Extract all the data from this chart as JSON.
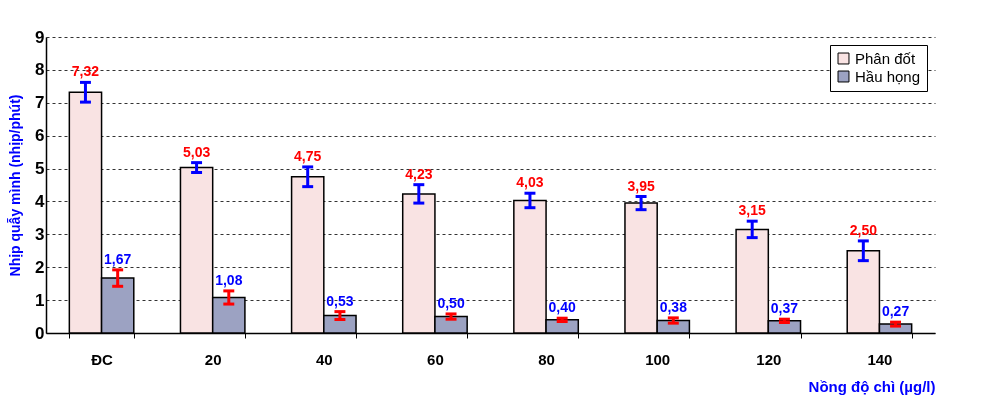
{
  "chart_data": {
    "type": "bar",
    "xlabel": "Nồng độ chì (µg/l)",
    "ylabel": "Nhịp quẫy mình (nhịp/phút)",
    "categories": [
      "ĐC",
      "20",
      "40",
      "60",
      "80",
      "100",
      "120",
      "140"
    ],
    "series": [
      {
        "name": "Phân đốt",
        "color": "#f9e3e3",
        "values": [
          7.32,
          5.03,
          4.75,
          4.23,
          4.03,
          3.95,
          3.15,
          2.5
        ],
        "errors": [
          0.3,
          0.15,
          0.3,
          0.28,
          0.22,
          0.2,
          0.25,
          0.3
        ],
        "value_labels": [
          "7,32",
          "5,03",
          "4,75",
          "4,23",
          "4,03",
          "3,95",
          "3,15",
          "2,50"
        ]
      },
      {
        "name": "Hầu họng",
        "color": "#9ca2c2",
        "values": [
          1.67,
          1.08,
          0.53,
          0.5,
          0.4,
          0.38,
          0.37,
          0.27
        ],
        "errors": [
          0.25,
          0.2,
          0.12,
          0.08,
          0.05,
          0.08,
          0.05,
          0.06
        ],
        "value_labels": [
          "1,67",
          "1,08",
          "0,53",
          "0,50",
          "0,40",
          "0,38",
          "0,37",
          "0,27"
        ]
      }
    ],
    "ylim": [
      0,
      9
    ],
    "yticks": [
      0,
      1,
      2,
      3,
      4,
      5,
      6,
      7,
      8,
      9
    ],
    "grid": "y",
    "legend": "top right"
  }
}
